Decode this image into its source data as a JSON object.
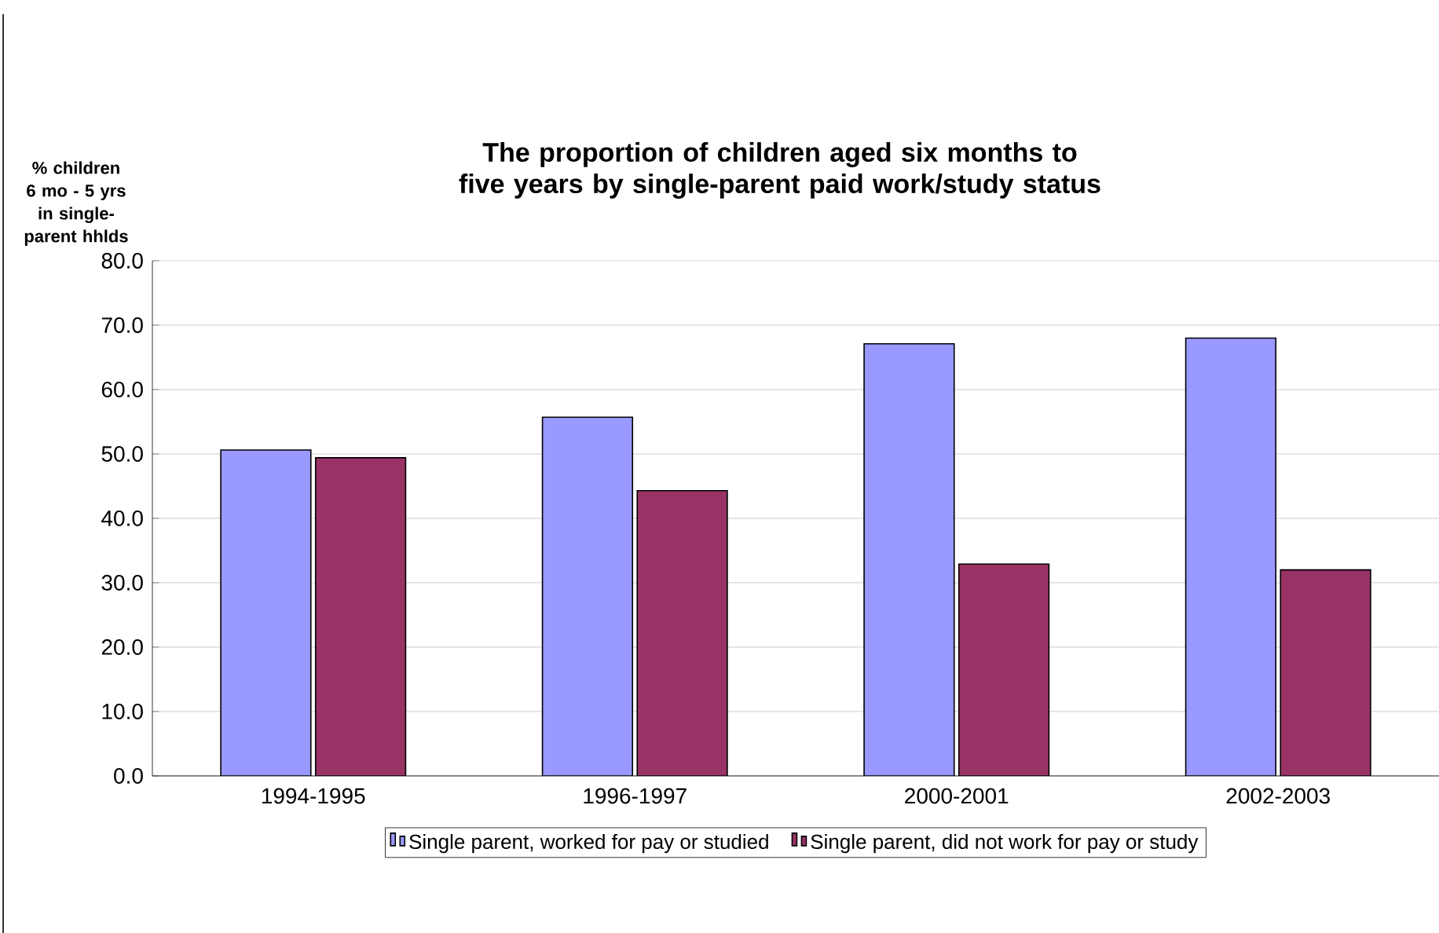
{
  "chart_data": {
    "type": "bar",
    "title": "The proportion of children aged six months to five years by single-parent paid work/study status",
    "ylabel": "% children 6 mo - 5 yrs in single-parent hhlds",
    "categories": [
      "1994-1995",
      "1996-1997",
      "2000-2001",
      "2002-2003"
    ],
    "series": [
      {
        "name": "Single parent, worked for pay or studied",
        "color": "#9999ff",
        "values": [
          50.6,
          55.7,
          67.1,
          68.0
        ]
      },
      {
        "name": "Single parent, did not work for pay or study",
        "color": "#993366",
        "values": [
          49.4,
          44.3,
          32.9,
          32.0
        ]
      }
    ],
    "ylim": [
      0,
      80
    ],
    "yticks": [
      {
        "value": 0,
        "label": "0.0"
      },
      {
        "value": 10,
        "label": "10.0"
      },
      {
        "value": 20,
        "label": "20.0"
      },
      {
        "value": 30,
        "label": "30.0"
      },
      {
        "value": 40,
        "label": "40.0"
      },
      {
        "value": 50,
        "label": "50.0"
      },
      {
        "value": 60,
        "label": "60.0"
      },
      {
        "value": 70,
        "label": "70.0"
      },
      {
        "value": 80,
        "label": "80.0"
      }
    ],
    "grid": "y",
    "legend": "bottom"
  }
}
